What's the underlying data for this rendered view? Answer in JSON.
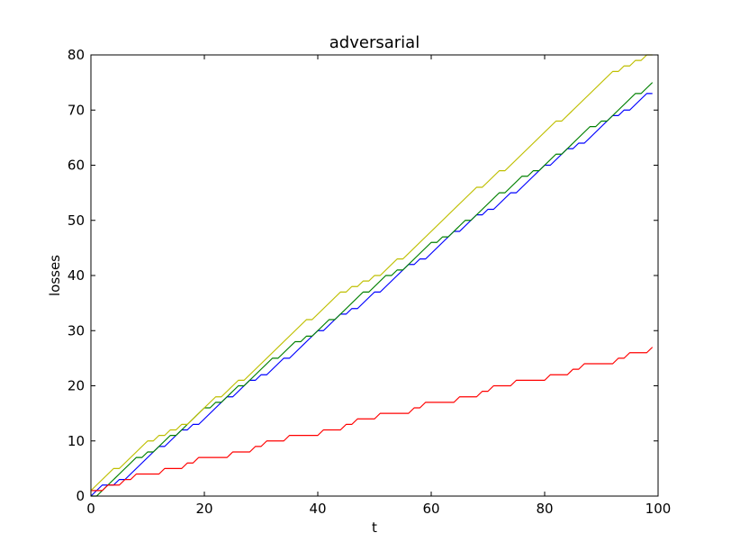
{
  "chart_data": {
    "type": "line",
    "title": "adversarial",
    "xlabel": "t",
    "ylabel": "losses",
    "xlim": [
      0,
      100
    ],
    "ylim": [
      0,
      80
    ],
    "xticks": [
      0,
      20,
      40,
      60,
      80,
      100
    ],
    "yticks": [
      0,
      10,
      20,
      30,
      40,
      50,
      60,
      70,
      80
    ],
    "grid": false,
    "legend": "none",
    "series": [
      {
        "color": "#0000ff",
        "x": [
          0,
          1,
          2,
          3,
          4,
          5,
          6,
          7,
          8,
          9,
          10,
          11,
          12,
          13,
          14,
          15,
          16,
          17,
          18,
          19,
          20,
          21,
          22,
          23,
          24,
          25,
          26,
          27,
          28,
          29,
          30,
          31,
          32,
          33,
          34,
          35,
          36,
          37,
          38,
          39,
          40,
          41,
          42,
          43,
          44,
          45,
          46,
          47,
          48,
          49,
          50,
          51,
          52,
          53,
          54,
          55,
          56,
          57,
          58,
          59,
          60,
          61,
          62,
          63,
          64,
          65,
          66,
          67,
          68,
          69,
          70,
          71,
          72,
          73,
          74,
          75,
          76,
          77,
          78,
          79,
          80,
          81,
          82,
          83,
          84,
          85,
          86,
          87,
          88,
          89,
          90,
          91,
          92,
          93,
          94,
          95,
          96,
          97,
          98,
          99
        ],
        "y": [
          0,
          1,
          2,
          2,
          2,
          3,
          3,
          4,
          5,
          6,
          7,
          8,
          9,
          9,
          10,
          11,
          12,
          12,
          13,
          13,
          14,
          15,
          16,
          17,
          18,
          18,
          19,
          20,
          21,
          21,
          22,
          22,
          23,
          24,
          25,
          25,
          26,
          27,
          28,
          29,
          30,
          30,
          31,
          32,
          33,
          33,
          34,
          34,
          35,
          36,
          37,
          37,
          38,
          39,
          40,
          41,
          42,
          42,
          43,
          43,
          44,
          45,
          46,
          47,
          48,
          48,
          49,
          50,
          51,
          51,
          52,
          52,
          53,
          54,
          55,
          55,
          56,
          57,
          58,
          59,
          60,
          60,
          61,
          62,
          63,
          63,
          64,
          64,
          65,
          66,
          67,
          68,
          69,
          69,
          70,
          70,
          71,
          72,
          73,
          73
        ]
      },
      {
        "color": "#008000",
        "x": [
          0,
          1,
          2,
          3,
          4,
          5,
          6,
          7,
          8,
          9,
          10,
          11,
          12,
          13,
          14,
          15,
          16,
          17,
          18,
          19,
          20,
          21,
          22,
          23,
          24,
          25,
          26,
          27,
          28,
          29,
          30,
          31,
          32,
          33,
          34,
          35,
          36,
          37,
          38,
          39,
          40,
          41,
          42,
          43,
          44,
          45,
          46,
          47,
          48,
          49,
          50,
          51,
          52,
          53,
          54,
          55,
          56,
          57,
          58,
          59,
          60,
          61,
          62,
          63,
          64,
          65,
          66,
          67,
          68,
          69,
          70,
          71,
          72,
          73,
          74,
          75,
          76,
          77,
          78,
          79,
          80,
          81,
          82,
          83,
          84,
          85,
          86,
          87,
          88,
          89,
          90,
          91,
          92,
          93,
          94,
          95,
          96,
          97,
          98,
          99
        ],
        "y": [
          0,
          0,
          1,
          2,
          3,
          4,
          5,
          6,
          7,
          7,
          8,
          8,
          9,
          10,
          11,
          11,
          12,
          13,
          14,
          15,
          16,
          16,
          17,
          17,
          18,
          19,
          20,
          20,
          21,
          22,
          23,
          24,
          25,
          25,
          26,
          27,
          28,
          28,
          29,
          29,
          30,
          31,
          32,
          32,
          33,
          34,
          35,
          36,
          37,
          37,
          38,
          39,
          40,
          40,
          41,
          41,
          42,
          43,
          44,
          45,
          46,
          46,
          47,
          47,
          48,
          49,
          50,
          50,
          51,
          52,
          53,
          54,
          55,
          55,
          56,
          57,
          58,
          58,
          59,
          59,
          60,
          61,
          62,
          62,
          63,
          64,
          65,
          66,
          67,
          67,
          68,
          68,
          69,
          70,
          71,
          72,
          73,
          73,
          74,
          75
        ]
      },
      {
        "color": "#ff0000",
        "x": [
          0,
          1,
          2,
          3,
          4,
          5,
          6,
          7,
          8,
          9,
          10,
          11,
          12,
          13,
          14,
          15,
          16,
          17,
          18,
          19,
          20,
          21,
          22,
          23,
          24,
          25,
          26,
          27,
          28,
          29,
          30,
          31,
          32,
          33,
          34,
          35,
          36,
          37,
          38,
          39,
          40,
          41,
          42,
          43,
          44,
          45,
          46,
          47,
          48,
          49,
          50,
          51,
          52,
          53,
          54,
          55,
          56,
          57,
          58,
          59,
          60,
          61,
          62,
          63,
          64,
          65,
          66,
          67,
          68,
          69,
          70,
          71,
          72,
          73,
          74,
          75,
          76,
          77,
          78,
          79,
          80,
          81,
          82,
          83,
          84,
          85,
          86,
          87,
          88,
          89,
          90,
          91,
          92,
          93,
          94,
          95,
          96,
          97,
          98,
          99
        ],
        "y": [
          1,
          1,
          1,
          2,
          2,
          2,
          3,
          3,
          4,
          4,
          4,
          4,
          4,
          5,
          5,
          5,
          5,
          6,
          6,
          7,
          7,
          7,
          7,
          7,
          7,
          8,
          8,
          8,
          8,
          9,
          9,
          10,
          10,
          10,
          10,
          11,
          11,
          11,
          11,
          11,
          11,
          12,
          12,
          12,
          12,
          13,
          13,
          14,
          14,
          14,
          14,
          15,
          15,
          15,
          15,
          15,
          15,
          16,
          16,
          17,
          17,
          17,
          17,
          17,
          17,
          18,
          18,
          18,
          18,
          19,
          19,
          20,
          20,
          20,
          20,
          21,
          21,
          21,
          21,
          21,
          21,
          22,
          22,
          22,
          22,
          23,
          23,
          24,
          24,
          24,
          24,
          24,
          24,
          25,
          25,
          26,
          26,
          26,
          26,
          27
        ]
      },
      {
        "color": "#bfbf00",
        "x": [
          0,
          1,
          2,
          3,
          4,
          5,
          6,
          7,
          8,
          9,
          10,
          11,
          12,
          13,
          14,
          15,
          16,
          17,
          18,
          19,
          20,
          21,
          22,
          23,
          24,
          25,
          26,
          27,
          28,
          29,
          30,
          31,
          32,
          33,
          34,
          35,
          36,
          37,
          38,
          39,
          40,
          41,
          42,
          43,
          44,
          45,
          46,
          47,
          48,
          49,
          50,
          51,
          52,
          53,
          54,
          55,
          56,
          57,
          58,
          59,
          60,
          61,
          62,
          63,
          64,
          65,
          66,
          67,
          68,
          69,
          70,
          71,
          72,
          73,
          74,
          75,
          76,
          77,
          78,
          79,
          80,
          81,
          82,
          83,
          84,
          85,
          86,
          87,
          88,
          89,
          90,
          91,
          92,
          93,
          94,
          95,
          96,
          97,
          98,
          99
        ],
        "y": [
          1,
          2,
          3,
          4,
          5,
          5,
          6,
          7,
          8,
          9,
          10,
          10,
          11,
          11,
          12,
          12,
          13,
          13,
          14,
          15,
          16,
          17,
          18,
          18,
          19,
          20,
          21,
          21,
          22,
          23,
          24,
          25,
          26,
          27,
          28,
          29,
          30,
          31,
          32,
          32,
          33,
          34,
          35,
          36,
          37,
          37,
          38,
          38,
          39,
          39,
          40,
          40,
          41,
          42,
          43,
          43,
          44,
          45,
          46,
          47,
          48,
          49,
          50,
          51,
          52,
          53,
          54,
          55,
          56,
          56,
          57,
          58,
          59,
          59,
          60,
          61,
          62,
          63,
          64,
          65,
          66,
          67,
          68,
          68,
          69,
          70,
          71,
          72,
          73,
          74,
          75,
          76,
          77,
          77,
          78,
          78,
          79,
          79,
          80,
          80
        ]
      }
    ]
  }
}
